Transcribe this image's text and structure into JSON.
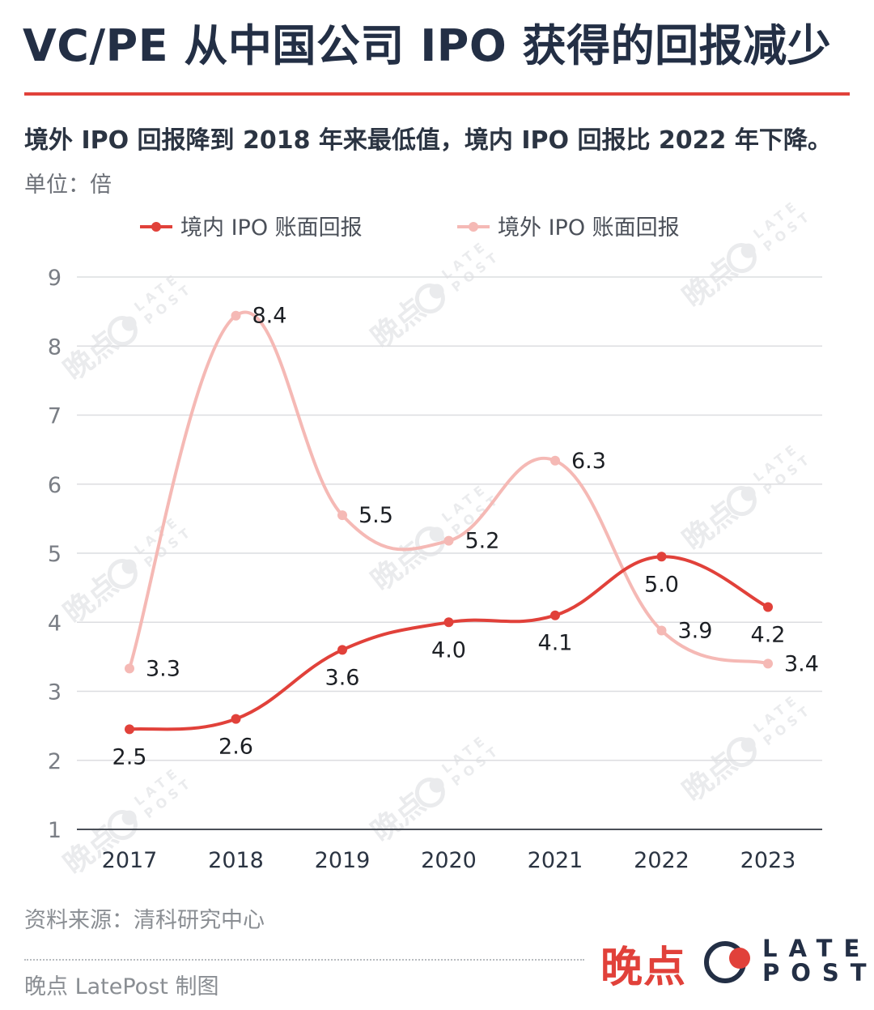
{
  "header": {
    "title": "VC/PE 从中国公司 IPO 获得的回报减少",
    "subtitle": "境外 IPO 回报降到 2018 年来最低值，境内 IPO 回报比 2022 年下降。",
    "unit": "单位：倍"
  },
  "chart_data": {
    "type": "line",
    "title": "VC/PE 从中国公司 IPO 获得的回报减少",
    "xlabel": "",
    "ylabel": "倍",
    "categories": [
      "2017",
      "2018",
      "2019",
      "2020",
      "2021",
      "2022",
      "2023"
    ],
    "ylim": [
      1,
      9
    ],
    "yticks": [
      1,
      2,
      3,
      4,
      5,
      6,
      7,
      8,
      9
    ],
    "grid": true,
    "legend_position": "top",
    "series": [
      {
        "name": "境内 IPO 账面回报",
        "color": "#e1413a",
        "values": [
          2.45,
          2.6,
          3.6,
          4.0,
          4.1,
          4.95,
          4.22
        ],
        "labels": [
          "2.5",
          "2.6",
          "3.6",
          "4.0",
          "4.1",
          "5.0",
          "4.2"
        ],
        "label_placement": [
          "below",
          "below",
          "below",
          "below",
          "below",
          "below",
          "below"
        ]
      },
      {
        "name": "境外 IPO 账面回报",
        "color": "#f5b9b5",
        "values": [
          3.33,
          8.44,
          5.55,
          5.18,
          6.34,
          3.88,
          3.4
        ],
        "labels": [
          "3.3",
          "8.4",
          "5.5",
          "5.2",
          "6.3",
          "3.9",
          "3.4"
        ],
        "label_placement": [
          "right",
          "right",
          "right",
          "right",
          "right",
          "right",
          "right"
        ]
      }
    ]
  },
  "watermark": {
    "cn": "晚点",
    "en_1": "LATE",
    "en_2": "POST"
  },
  "footer": {
    "source": "资料来源：清科研究中心",
    "credit": "晚点 LatePost 制图",
    "logo_cn": "晚点",
    "logo_en_1": "LATE",
    "logo_en_2": "POST"
  }
}
